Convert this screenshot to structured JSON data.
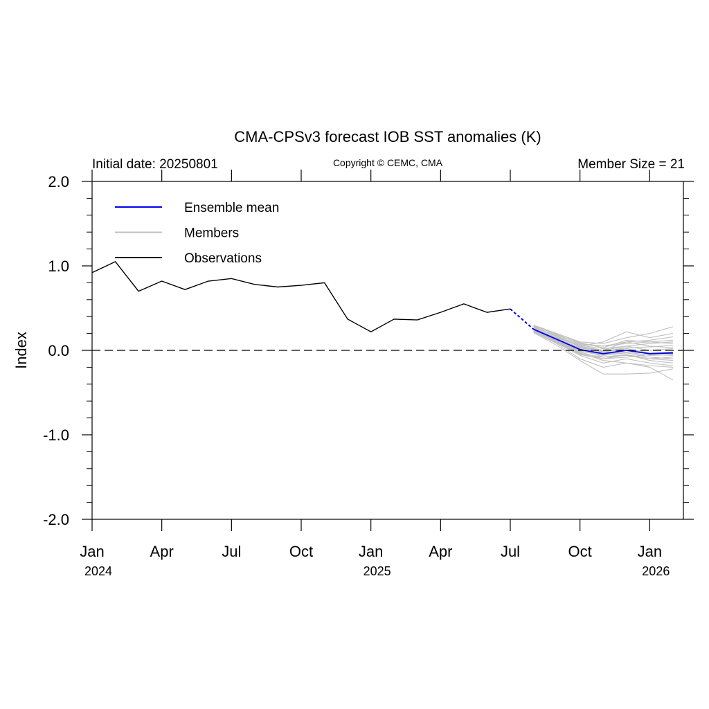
{
  "chart_data": {
    "type": "line",
    "title": "CMA-CPSv3 forecast IOB SST anomalies (K)",
    "subtitle_left": "Initial date: 20250801",
    "subtitle_center": "Copyright © CEMC, CMA",
    "subtitle_right": "Member Size = 21",
    "ylabel": "Index",
    "ylim": [
      -2.0,
      2.0
    ],
    "yticks": [
      2.0,
      1.0,
      0.0,
      -1.0,
      -2.0
    ],
    "ytick_labels": [
      "2.0",
      "1.0",
      "0.0",
      "-1.0",
      "-2.0"
    ],
    "xlim": [
      "2024-01",
      "2026-02"
    ],
    "xticks": [
      {
        "date": "2024-01",
        "month": "Jan",
        "year": "2024"
      },
      {
        "date": "2024-04",
        "month": "Apr",
        "year": ""
      },
      {
        "date": "2024-07",
        "month": "Jul",
        "year": ""
      },
      {
        "date": "2024-10",
        "month": "Oct",
        "year": ""
      },
      {
        "date": "2025-01",
        "month": "Jan",
        "year": "2025"
      },
      {
        "date": "2025-04",
        "month": "Apr",
        "year": ""
      },
      {
        "date": "2025-07",
        "month": "Jul",
        "year": ""
      },
      {
        "date": "2025-10",
        "month": "Oct",
        "year": ""
      },
      {
        "date": "2026-01",
        "month": "Jan",
        "year": "2026"
      }
    ],
    "zero_line": 0.0,
    "legend": {
      "placement": "top-left",
      "items": [
        {
          "name": "Ensemble mean",
          "color": "#0000ee"
        },
        {
          "name": "Members",
          "color": "#bfbfbf"
        },
        {
          "name": "Observations",
          "color": "#000000"
        }
      ]
    },
    "observations": {
      "name": "Observations",
      "color": "#000000",
      "x": [
        "2024-01",
        "2024-02",
        "2024-03",
        "2024-04",
        "2024-05",
        "2024-06",
        "2024-07",
        "2024-08",
        "2024-09",
        "2024-10",
        "2024-11",
        "2024-12",
        "2025-01",
        "2025-02",
        "2025-03",
        "2025-04",
        "2025-05",
        "2025-06",
        "2025-07"
      ],
      "y": [
        0.92,
        1.05,
        0.7,
        0.82,
        0.72,
        0.82,
        0.85,
        0.78,
        0.75,
        0.77,
        0.8,
        0.37,
        0.22,
        0.37,
        0.36,
        0.45,
        0.55,
        0.45,
        0.49
      ]
    },
    "ensemble_mean": {
      "name": "Ensemble mean",
      "color": "#0000ee",
      "x": [
        "2025-08",
        "2025-09",
        "2025-10",
        "2025-11",
        "2025-12",
        "2026-01",
        "2026-02"
      ],
      "y": [
        0.25,
        0.13,
        0.01,
        -0.04,
        0.0,
        -0.04,
        -0.03
      ]
    },
    "members": {
      "name": "Members",
      "color": "#bfbfbf",
      "x": [
        "2025-08",
        "2025-09",
        "2025-10",
        "2025-11",
        "2025-12",
        "2026-01",
        "2026-02"
      ],
      "series": [
        [
          0.25,
          0.14,
          0.03,
          -0.02,
          0.02,
          -0.03,
          -0.02
        ],
        [
          0.27,
          0.18,
          0.08,
          0.05,
          0.1,
          0.05,
          0.03
        ],
        [
          0.23,
          0.1,
          -0.05,
          -0.1,
          -0.05,
          -0.1,
          -0.12
        ],
        [
          0.3,
          0.2,
          0.1,
          0.08,
          0.15,
          0.2,
          0.28
        ],
        [
          0.22,
          0.08,
          -0.1,
          -0.2,
          -0.15,
          -0.18,
          -0.2
        ],
        [
          0.26,
          0.15,
          0.05,
          0.0,
          0.05,
          0.0,
          0.02
        ],
        [
          0.24,
          0.12,
          0.0,
          -0.05,
          -0.02,
          -0.06,
          -0.05
        ],
        [
          0.28,
          0.16,
          0.05,
          0.1,
          0.22,
          0.15,
          0.2
        ],
        [
          0.21,
          0.06,
          -0.12,
          -0.28,
          -0.28,
          -0.27,
          -0.22
        ],
        [
          0.25,
          0.14,
          0.02,
          -0.08,
          -0.05,
          -0.12,
          -0.15
        ],
        [
          0.29,
          0.19,
          0.07,
          0.05,
          0.08,
          0.1,
          0.12
        ],
        [
          0.23,
          0.11,
          -0.02,
          -0.1,
          -0.08,
          -0.05,
          -0.06
        ],
        [
          0.26,
          0.13,
          0.01,
          -0.03,
          0.0,
          -0.03,
          -0.04
        ],
        [
          0.24,
          0.1,
          -0.03,
          -0.12,
          -0.15,
          -0.2,
          -0.35
        ],
        [
          0.27,
          0.17,
          0.06,
          0.02,
          0.05,
          0.08,
          0.1
        ],
        [
          0.22,
          0.09,
          -0.06,
          -0.15,
          -0.1,
          -0.15,
          -0.18
        ],
        [
          0.28,
          0.17,
          0.04,
          0.0,
          0.1,
          0.12,
          0.16
        ],
        [
          0.25,
          0.12,
          -0.01,
          -0.06,
          -0.03,
          -0.08,
          -0.1
        ],
        [
          0.26,
          0.14,
          0.03,
          -0.01,
          0.03,
          0.04,
          0.06
        ],
        [
          0.24,
          0.11,
          -0.04,
          -0.08,
          -0.06,
          -0.1,
          -0.08
        ],
        [
          0.29,
          0.2,
          0.09,
          0.03,
          0.12,
          0.1,
          0.08
        ]
      ]
    }
  }
}
